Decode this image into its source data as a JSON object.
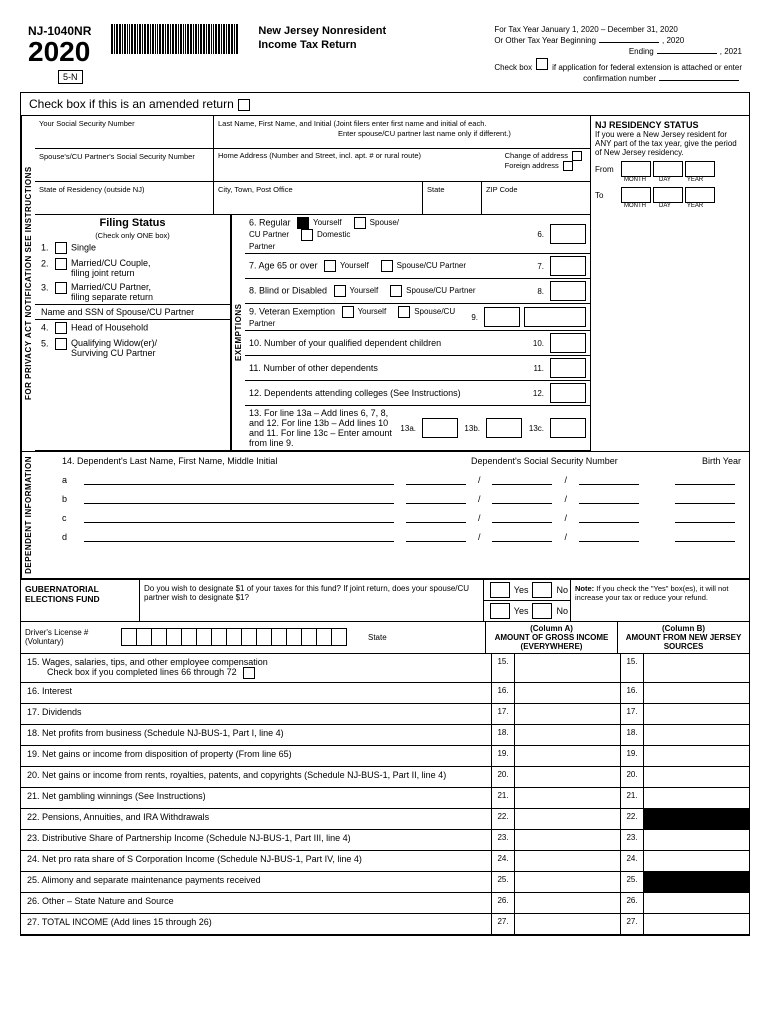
{
  "header": {
    "form_code": "NJ-1040NR",
    "year": "2020",
    "badge": "5-N",
    "title_line1": "New Jersey Nonresident",
    "title_line2": "Income Tax Return",
    "meta_taxyear": "For Tax Year January 1, 2020 – December 31, 2020",
    "meta_other": "Or Other Tax Year Beginning",
    "meta_ending": "Ending",
    "meta_y1": ", 2020",
    "meta_y2": ", 2021",
    "meta_check": "Check box",
    "meta_check_txt": "if application for federal extension is attached or enter",
    "meta_conf": "confirmation number"
  },
  "amended": "Check box if this is an amended return",
  "vlabels": {
    "instructions": "FOR PRIVACY ACT NOTIFICATION SEE INSTRUCTIONS",
    "exemptions": "EXEMPTIONS",
    "dependent": "DEPENDENT INFORMATION"
  },
  "top_fields": {
    "ssn": "Your Social Security Number",
    "spouse_ssn": "Spouse's/CU Partner's Social Security Number",
    "state_res": "State of Residency (outside NJ)",
    "name": "Last Name, First Name, and Initial (Joint filers enter first name and initial of each.",
    "name2": "Enter spouse/CU partner last name only if different.)",
    "addr": "Home Address (Number and Street, incl. apt. # or rural route)",
    "change_addr": "Change of address",
    "foreign_addr": "Foreign address",
    "city": "City, Town, Post Office",
    "state": "State",
    "zip": "ZIP Code"
  },
  "residency": {
    "title": "NJ RESIDENCY STATUS",
    "text": "If you were a New Jersey resident for ANY part of the tax year, give the period of New Jersey residency.",
    "from": "From",
    "to": "To",
    "m": "MONTH",
    "d": "DAY",
    "y": "YEAR"
  },
  "filing": {
    "title": "Filing Status",
    "sub": "(Check only ONE box)",
    "opts": [
      "Single",
      "Married/CU Couple,\nfiling joint return",
      "Married/CU Partner,\nfiling separate return",
      "Head of Household",
      "Qualifying Widow(er)/\nSurviving CU Partner"
    ],
    "name_ssn": "Name and SSN of Spouse/CU Partner"
  },
  "exemptions": [
    {
      "n": "6",
      "txt": "6. Regular",
      "opts": [
        "Yourself",
        "Spouse/\nCU Partner",
        "Domestic\nPartner"
      ],
      "box": "6."
    },
    {
      "n": "7",
      "txt": "7. Age 65 or over",
      "opts": [
        "Yourself",
        "Spouse/CU Partner"
      ],
      "box": "7."
    },
    {
      "n": "8",
      "txt": "8. Blind or Disabled",
      "opts": [
        "Yourself",
        "Spouse/CU Partner"
      ],
      "box": "8."
    },
    {
      "n": "9",
      "txt": "9. Veteran Exemption",
      "opts": [
        "Yourself",
        "Spouse/CU Partner"
      ],
      "box": "9.",
      "wide": true
    },
    {
      "n": "10",
      "txt": "10. Number of your qualified dependent children",
      "box": "10."
    },
    {
      "n": "11",
      "txt": "11. Number of other dependents",
      "box": "11."
    },
    {
      "n": "12",
      "txt": "12. Dependents attending colleges (See Instructions)",
      "box": "12."
    },
    {
      "n": "13",
      "txt": "13. For line 13a – Add lines 6, 7, 8, and 12. For line 13b – Add lines 10 and 11. For line 13c – Enter amount from line 9.",
      "boxes": [
        "13a.",
        "13b.",
        "13c."
      ]
    }
  ],
  "dependents": {
    "header": "14.    Dependent's Last Name, First Name, Middle Initial",
    "ssn_hdr": "Dependent's Social Security Number",
    "birth_hdr": "Birth Year",
    "rows": [
      "a",
      "b",
      "c",
      "d"
    ]
  },
  "gubernatorial": {
    "title": "GUBERNATORIAL ELECTIONS FUND",
    "q": "Do you wish to designate $1 of your taxes for this fund? If joint return, does your spouse/CU partner wish to designate $1?",
    "yes": "Yes",
    "no": "No",
    "note_b": "Note:",
    "note": " If you check the \"Yes\" box(es), it will not increase your tax or reduce your refund."
  },
  "dl": {
    "label": "Driver's License #",
    "vol": "(Voluntary)",
    "state": "State"
  },
  "columns": {
    "a": "(Column A)\nAMOUNT OF GROSS INCOME\n(EVERYWHERE)",
    "b": "(Column B)\nAMOUNT FROM NEW JERSEY\nSOURCES"
  },
  "income": [
    {
      "n": "15",
      "txt": "15. Wages, salaries, tips, and other employee compensation",
      "sub": "Check box if you completed lines 66 through 72"
    },
    {
      "n": "16",
      "txt": "16. Interest"
    },
    {
      "n": "17",
      "txt": "17. Dividends"
    },
    {
      "n": "18",
      "txt": "18. Net profits from business (Schedule NJ-BUS-1, Part I, line 4)"
    },
    {
      "n": "19",
      "txt": "19. Net gains or income from disposition of property (From line 65)"
    },
    {
      "n": "20",
      "txt": "20. Net gains or income from rents, royalties, patents, and copyrights (Schedule NJ-BUS-1, Part II, line 4)"
    },
    {
      "n": "21",
      "txt": "21. Net gambling winnings (See Instructions)"
    },
    {
      "n": "22",
      "txt": "22. Pensions, Annuities, and IRA Withdrawals",
      "darkB": true
    },
    {
      "n": "23",
      "txt": "23. Distributive Share of Partnership Income (Schedule NJ-BUS-1, Part III, line 4)"
    },
    {
      "n": "24",
      "txt": "24. Net pro rata share of S Corporation Income (Schedule NJ-BUS-1, Part IV, line 4)"
    },
    {
      "n": "25",
      "txt": "25. Alimony and separate maintenance payments received",
      "darkB": true
    },
    {
      "n": "26",
      "txt": "26. Other – State Nature and Source"
    },
    {
      "n": "27",
      "txt": "27. TOTAL INCOME (Add lines 15 through 26)"
    }
  ]
}
